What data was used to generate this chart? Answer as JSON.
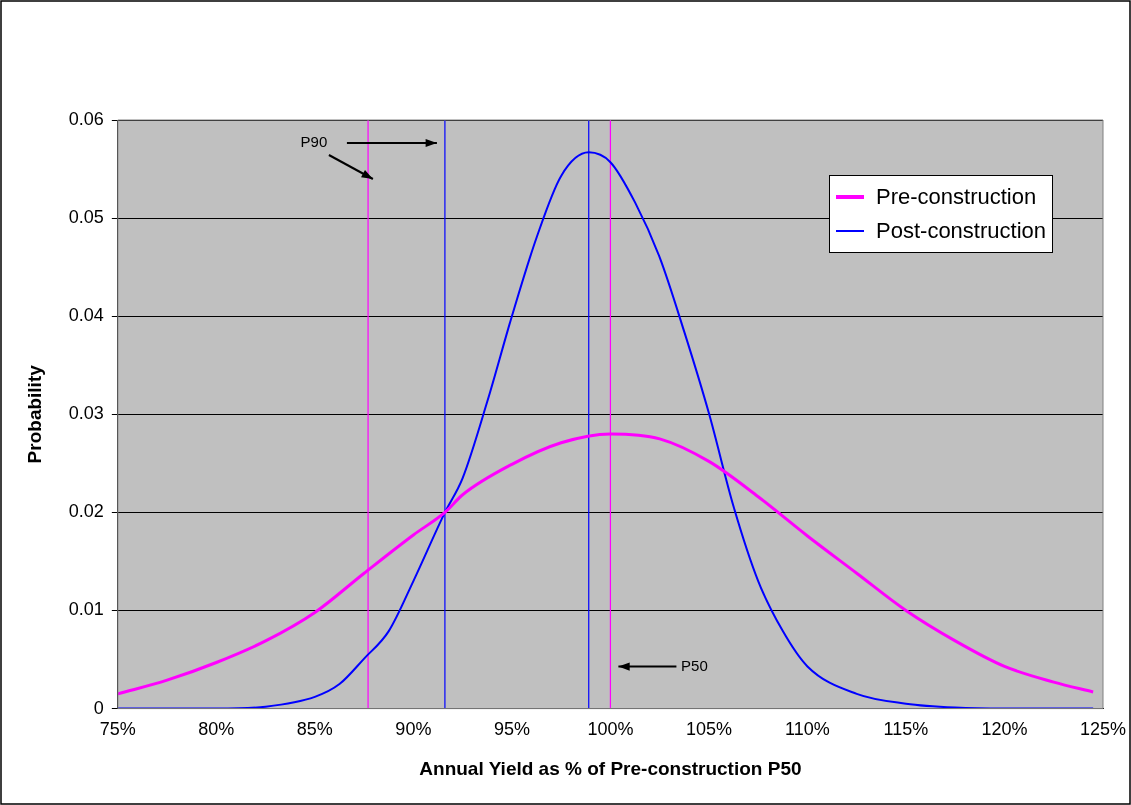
{
  "chart_data": {
    "type": "line",
    "xlabel": "Annual Yield as % of Pre-construction P50",
    "ylabel": "Probability",
    "xlim": [
      75,
      125
    ],
    "ylim": [
      0,
      0.06
    ],
    "xticks": [
      {
        "value": 75,
        "label": "75%"
      },
      {
        "value": 80,
        "label": "80%"
      },
      {
        "value": 85,
        "label": "85%"
      },
      {
        "value": 90,
        "label": "90%"
      },
      {
        "value": 95,
        "label": "95%"
      },
      {
        "value": 100,
        "label": "100%"
      },
      {
        "value": 105,
        "label": "105%"
      },
      {
        "value": 110,
        "label": "110%"
      },
      {
        "value": 115,
        "label": "115%"
      },
      {
        "value": 120,
        "label": "120%"
      },
      {
        "value": 125,
        "label": "125%"
      }
    ],
    "yticks": [
      0,
      0.01,
      0.02,
      0.03,
      0.04,
      0.05,
      0.06
    ],
    "grid": "y",
    "legend": "top right",
    "marker": "none",
    "line_style": "solid",
    "series": [
      {
        "name": "Pre-construction",
        "color": "#ff00ff",
        "x": [
          75,
          77.5,
          80,
          82.5,
          85,
          87.5,
          90,
          91.6,
          92.5,
          95,
          97.5,
          100,
          102.5,
          105,
          107.5,
          110,
          112.5,
          115,
          117.5,
          120,
          122.5,
          124.5
        ],
        "values": [
          0.0015,
          0.0029,
          0.0047,
          0.0069,
          0.0098,
          0.0138,
          0.0177,
          0.02,
          0.0218,
          0.0249,
          0.0271,
          0.028,
          0.0275,
          0.0252,
          0.0216,
          0.0176,
          0.0138,
          0.01,
          0.0069,
          0.0043,
          0.0027,
          0.0017
        ]
      },
      {
        "name": "Post-construction",
        "color": "#0000ff",
        "x": [
          75,
          80,
          82.5,
          85,
          86.25,
          87.5,
          88.75,
          90,
          91.6,
          92.5,
          93.75,
          95,
          96.25,
          97.5,
          98.9,
          100,
          101.25,
          102.5,
          103.75,
          105,
          106.25,
          107.5,
          108.75,
          110,
          112.5,
          115,
          117.5,
          120,
          124.5
        ],
        "values": [
          0,
          0,
          0.0002,
          0.0012,
          0.0025,
          0.0051,
          0.0079,
          0.013,
          0.02,
          0.0235,
          0.0313,
          0.04,
          0.048,
          0.0543,
          0.0567,
          0.0557,
          0.0516,
          0.046,
          0.0384,
          0.0301,
          0.0206,
          0.013,
          0.0079,
          0.0043,
          0.0015,
          0.0005,
          0.0001,
          0,
          0
        ]
      }
    ],
    "ref_lines": [
      {
        "axis": "x",
        "value": 87.7,
        "color": "#ff00ff"
      },
      {
        "axis": "x",
        "value": 91.6,
        "color": "#0000ff"
      },
      {
        "axis": "x",
        "value": 98.9,
        "color": "#0000ff"
      },
      {
        "axis": "x",
        "value": 100,
        "color": "#ff00ff"
      }
    ],
    "annotations": [
      "P90",
      "P50"
    ]
  }
}
